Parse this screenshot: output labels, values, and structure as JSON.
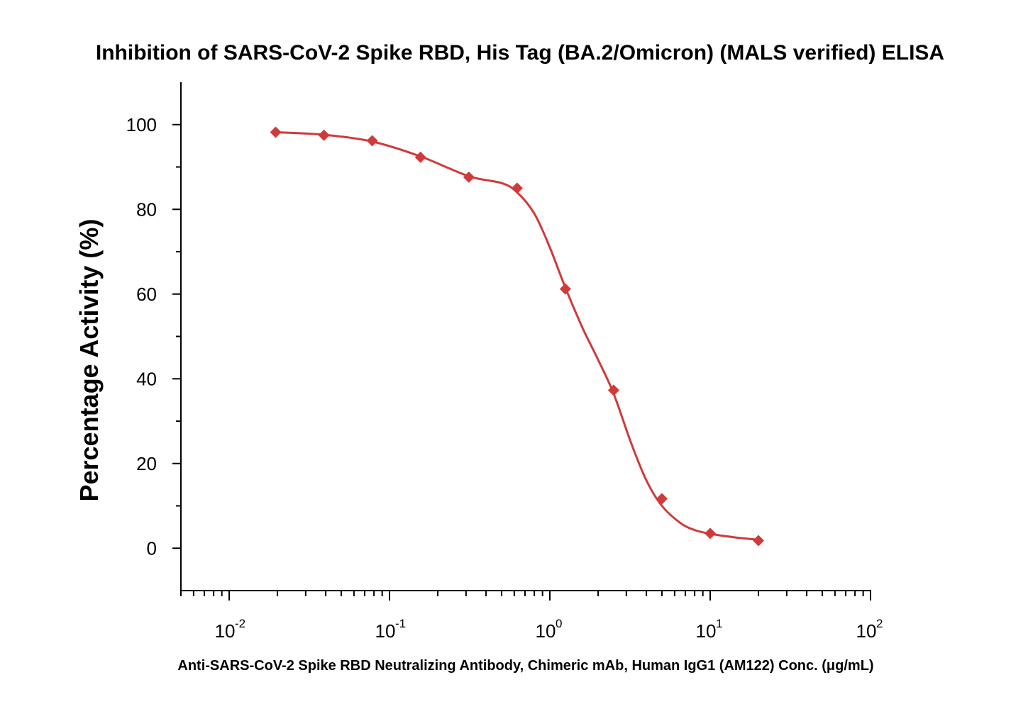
{
  "chart_data": {
    "type": "scatter",
    "title": "Inhibition of SARS-CoV-2 Spike RBD, His Tag (BA.2/Omicron) (MALS verified) ELISA",
    "xlabel": "Anti-SARS-CoV-2 Spike RBD Neutralizing Antibody, Chimeric mAb, Human IgG1 (AM122) Conc. (μg/mL)",
    "ylabel": "Percentage Activity (%)",
    "x_scale": "log",
    "xlim": [
      0.005,
      100
    ],
    "ylim": [
      -10,
      110
    ],
    "x_ticks": [
      {
        "base": "10",
        "exp": "-2"
      },
      {
        "base": "10",
        "exp": "-1"
      },
      {
        "base": "10",
        "exp": "0"
      },
      {
        "base": "10",
        "exp": "1"
      },
      {
        "base": "10",
        "exp": "2"
      }
    ],
    "y_ticks": [
      "0",
      "20",
      "40",
      "60",
      "80",
      "100"
    ],
    "grid": false,
    "color": "#d03a3a",
    "series": [
      {
        "marker": "diamond",
        "x": [
          0.0195,
          0.039,
          0.078,
          0.156,
          0.3125,
          0.625,
          1.25,
          2.5,
          5,
          10,
          20
        ],
        "y": [
          98.2,
          97.5,
          96.2,
          92.3,
          87.6,
          85.0,
          61.2,
          37.3,
          11.7,
          3.5,
          1.8
        ]
      }
    ],
    "fit_curve": {
      "x": [
        0.0195,
        0.039,
        0.078,
        0.156,
        0.3125,
        0.5,
        0.625,
        0.8,
        1.0,
        1.25,
        1.6,
        2.0,
        2.5,
        3.2,
        4.0,
        5.0,
        6.5,
        8.0,
        10,
        14,
        20
      ],
      "y": [
        98.2,
        97.6,
        96.0,
        92.5,
        87.8,
        86.2,
        84.0,
        79.0,
        71.0,
        61.5,
        52.0,
        44.5,
        36.5,
        25.0,
        16.0,
        10.0,
        6.0,
        4.3,
        3.4,
        2.6,
        2.0
      ]
    }
  }
}
